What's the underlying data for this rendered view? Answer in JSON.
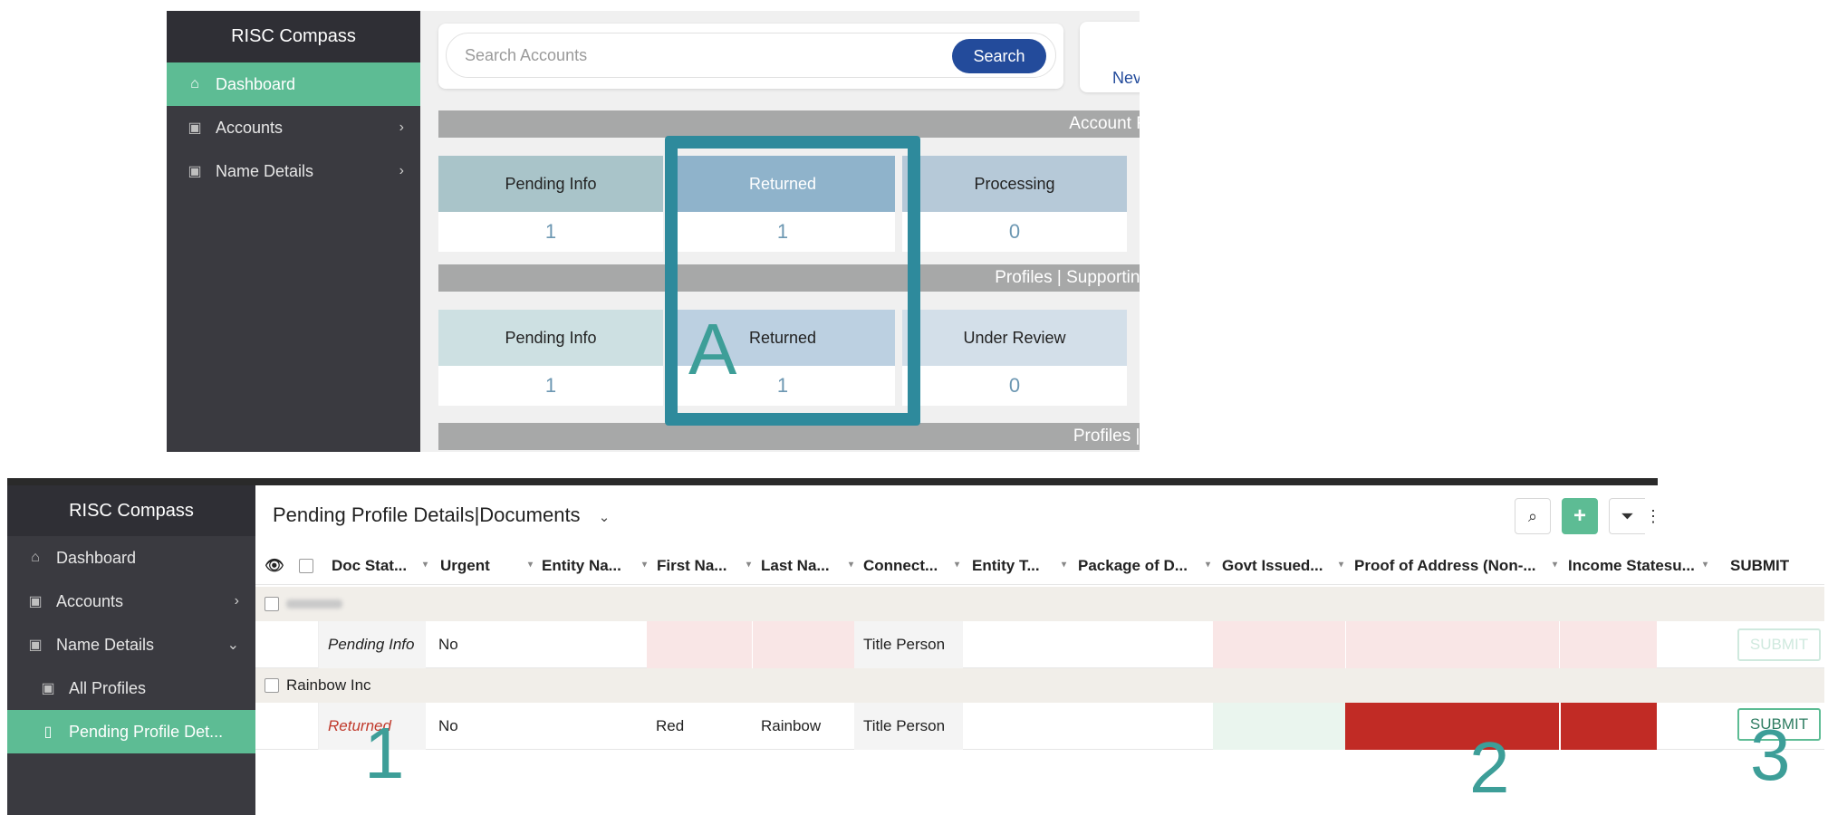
{
  "top": {
    "brand": "RISC Compass",
    "nav": [
      {
        "label": "Dashboard",
        "icon": "dashboard-icon",
        "active": true
      },
      {
        "label": "Accounts",
        "icon": "accounts-icon",
        "chevron": "›"
      },
      {
        "label": "Name Details",
        "icon": "name-details-icon",
        "chevron": "›"
      }
    ],
    "search": {
      "placeholder": "Search Accounts",
      "button": "Search"
    },
    "new_link": "Nev",
    "banner1": "Account Rev",
    "banner2": "Profiles | Supporting D",
    "banner3": "Profiles | Du",
    "row1": [
      {
        "label": "Pending Info",
        "value": "1",
        "color": "#a9c4c9"
      },
      {
        "label": "Returned",
        "value": "1",
        "color": "#8fb3cb"
      },
      {
        "label": "Processing",
        "value": "0",
        "color": "#b6c9d8"
      }
    ],
    "row2": [
      {
        "label": "Pending Info",
        "value": "1",
        "color": "#cde0e2"
      },
      {
        "label": "Returned",
        "value": "1",
        "color": "#bcd0e1"
      },
      {
        "label": "Under Review",
        "value": "0",
        "color": "#d3dfe9"
      }
    ],
    "callout": "A"
  },
  "bottom": {
    "brand": "RISC Compass",
    "nav": [
      {
        "label": "Dashboard",
        "icon": "dashboard-icon"
      },
      {
        "label": "Accounts",
        "icon": "accounts-icon",
        "chevron": "›"
      },
      {
        "label": "Name Details",
        "icon": "name-details-icon",
        "chevron": "⌄"
      },
      {
        "label": "All Profiles",
        "icon": "profiles-icon"
      },
      {
        "label": "Pending Profile Det...",
        "icon": "pending-icon",
        "active": true
      }
    ],
    "title": "Pending Profile Details|Documents",
    "title_chevron": "⌄",
    "columns": [
      "Doc Stat...",
      "Urgent",
      "Entity Na...",
      "First Na...",
      "Last Na...",
      "Connect...",
      "Entity T...",
      "Package of D...",
      "Govt Issued...",
      "Proof of Address (Non-...",
      "Income Statesu...",
      "SUBMIT"
    ],
    "group1": "",
    "group2": "Rainbow Inc",
    "row1": {
      "status": "Pending Info",
      "urgent": "No",
      "entity": "",
      "first": "",
      "last": "",
      "connect": "Title Person",
      "submit": "SUBMIT"
    },
    "row2": {
      "status": "Returned",
      "urgent": "No",
      "entity": "",
      "first": "Red",
      "last": "Rainbow",
      "connect": "Title Person",
      "submit": "SUBMIT"
    },
    "callouts": [
      "1",
      "2",
      "3"
    ],
    "colors": {
      "accent": "#5dbc94",
      "returned_text": "#c0392b",
      "proof_red": "#c12b25",
      "pale_red": "#f9e6e6",
      "pale_green": "#eaf5ee"
    }
  }
}
